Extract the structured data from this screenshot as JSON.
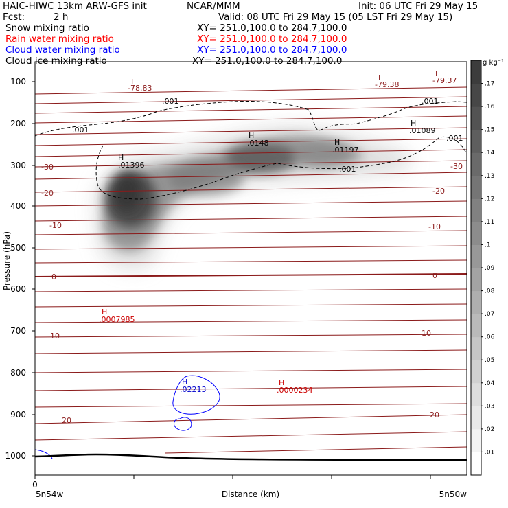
{
  "header": {
    "title": "HAIC-HIWC 13km ARW-GFS init",
    "source": "NCAR/MMM",
    "init": "Init: 06 UTC Fri 29 May 15",
    "fcst_label": "Fcst:",
    "fcst_value": "2 h",
    "valid": "Valid: 08 UTC Fri 29 May 15 (05 LST Fri 29 May 15)"
  },
  "fields": [
    {
      "name": "Snow mixing ratio",
      "xy": "XY= 251.0,100.0 to 284.7,100.0",
      "color": "#000000"
    },
    {
      "name": "Rain water mixing ratio",
      "xy": "XY= 251.0,100.0 to 284.7,100.0",
      "color": "#ff0000"
    },
    {
      "name": "Cloud water mixing ratio",
      "xy": "XY= 251.0,100.0 to 284.7,100.0",
      "color": "#0000ff"
    },
    {
      "name": "Cloud ice mixing ratio",
      "xy": "XY= 251.0,100.0 to 284.7,100.0",
      "color": "#000000"
    }
  ],
  "chart_data": {
    "type": "contour-cross-section",
    "ylabel": "Pressure (hPa)",
    "xlabel": "Distance (km)",
    "x_left_label": "5n54w",
    "x_right_label": "5n50w",
    "x_start_tick": "0",
    "y_ticks": [
      "100",
      "200",
      "300",
      "400",
      "500",
      "600",
      "700",
      "800",
      "900",
      "1000"
    ],
    "y_range_hpa": [
      50,
      1050
    ],
    "colorbar": {
      "unit": "g kg⁻¹",
      "levels": [
        ".01",
        ".02",
        ".03",
        ".04",
        ".05",
        ".06",
        ".07",
        ".08",
        ".09",
        ".1",
        ".11",
        ".12",
        ".13",
        ".14",
        ".15",
        ".16",
        ".17"
      ]
    },
    "temperature_contours": [
      {
        "label": "-30",
        "pressure": 300
      },
      {
        "label": "-20",
        "pressure": 380
      },
      {
        "label": "-10",
        "pressure": 470
      },
      {
        "label": "0",
        "pressure": 570
      },
      {
        "label": "10",
        "pressure": 690
      },
      {
        "label": "20",
        "pressure": 920
      }
    ],
    "snow_extremes": [
      {
        "type": "H",
        "value": ".01396"
      },
      {
        "type": "H",
        "value": ".0148"
      },
      {
        "type": "H",
        "value": ".01197"
      },
      {
        "type": "H",
        "value": ".01089"
      }
    ],
    "temperature_extremes": [
      {
        "type": "L",
        "value": "-78.83"
      },
      {
        "type": "L",
        "value": "-79.38"
      },
      {
        "type": "L",
        "value": "-79.37"
      }
    ],
    "rain_extremes": [
      {
        "type": "H",
        "value": ".0007985"
      },
      {
        "type": "H",
        "value": ".0000234"
      }
    ],
    "cloud_water_extremes": [
      {
        "type": "H",
        "value": ".02213"
      }
    ],
    "ice_contour_labels": [
      ".001",
      ".001",
      ".001",
      ".001",
      ".001"
    ]
  }
}
